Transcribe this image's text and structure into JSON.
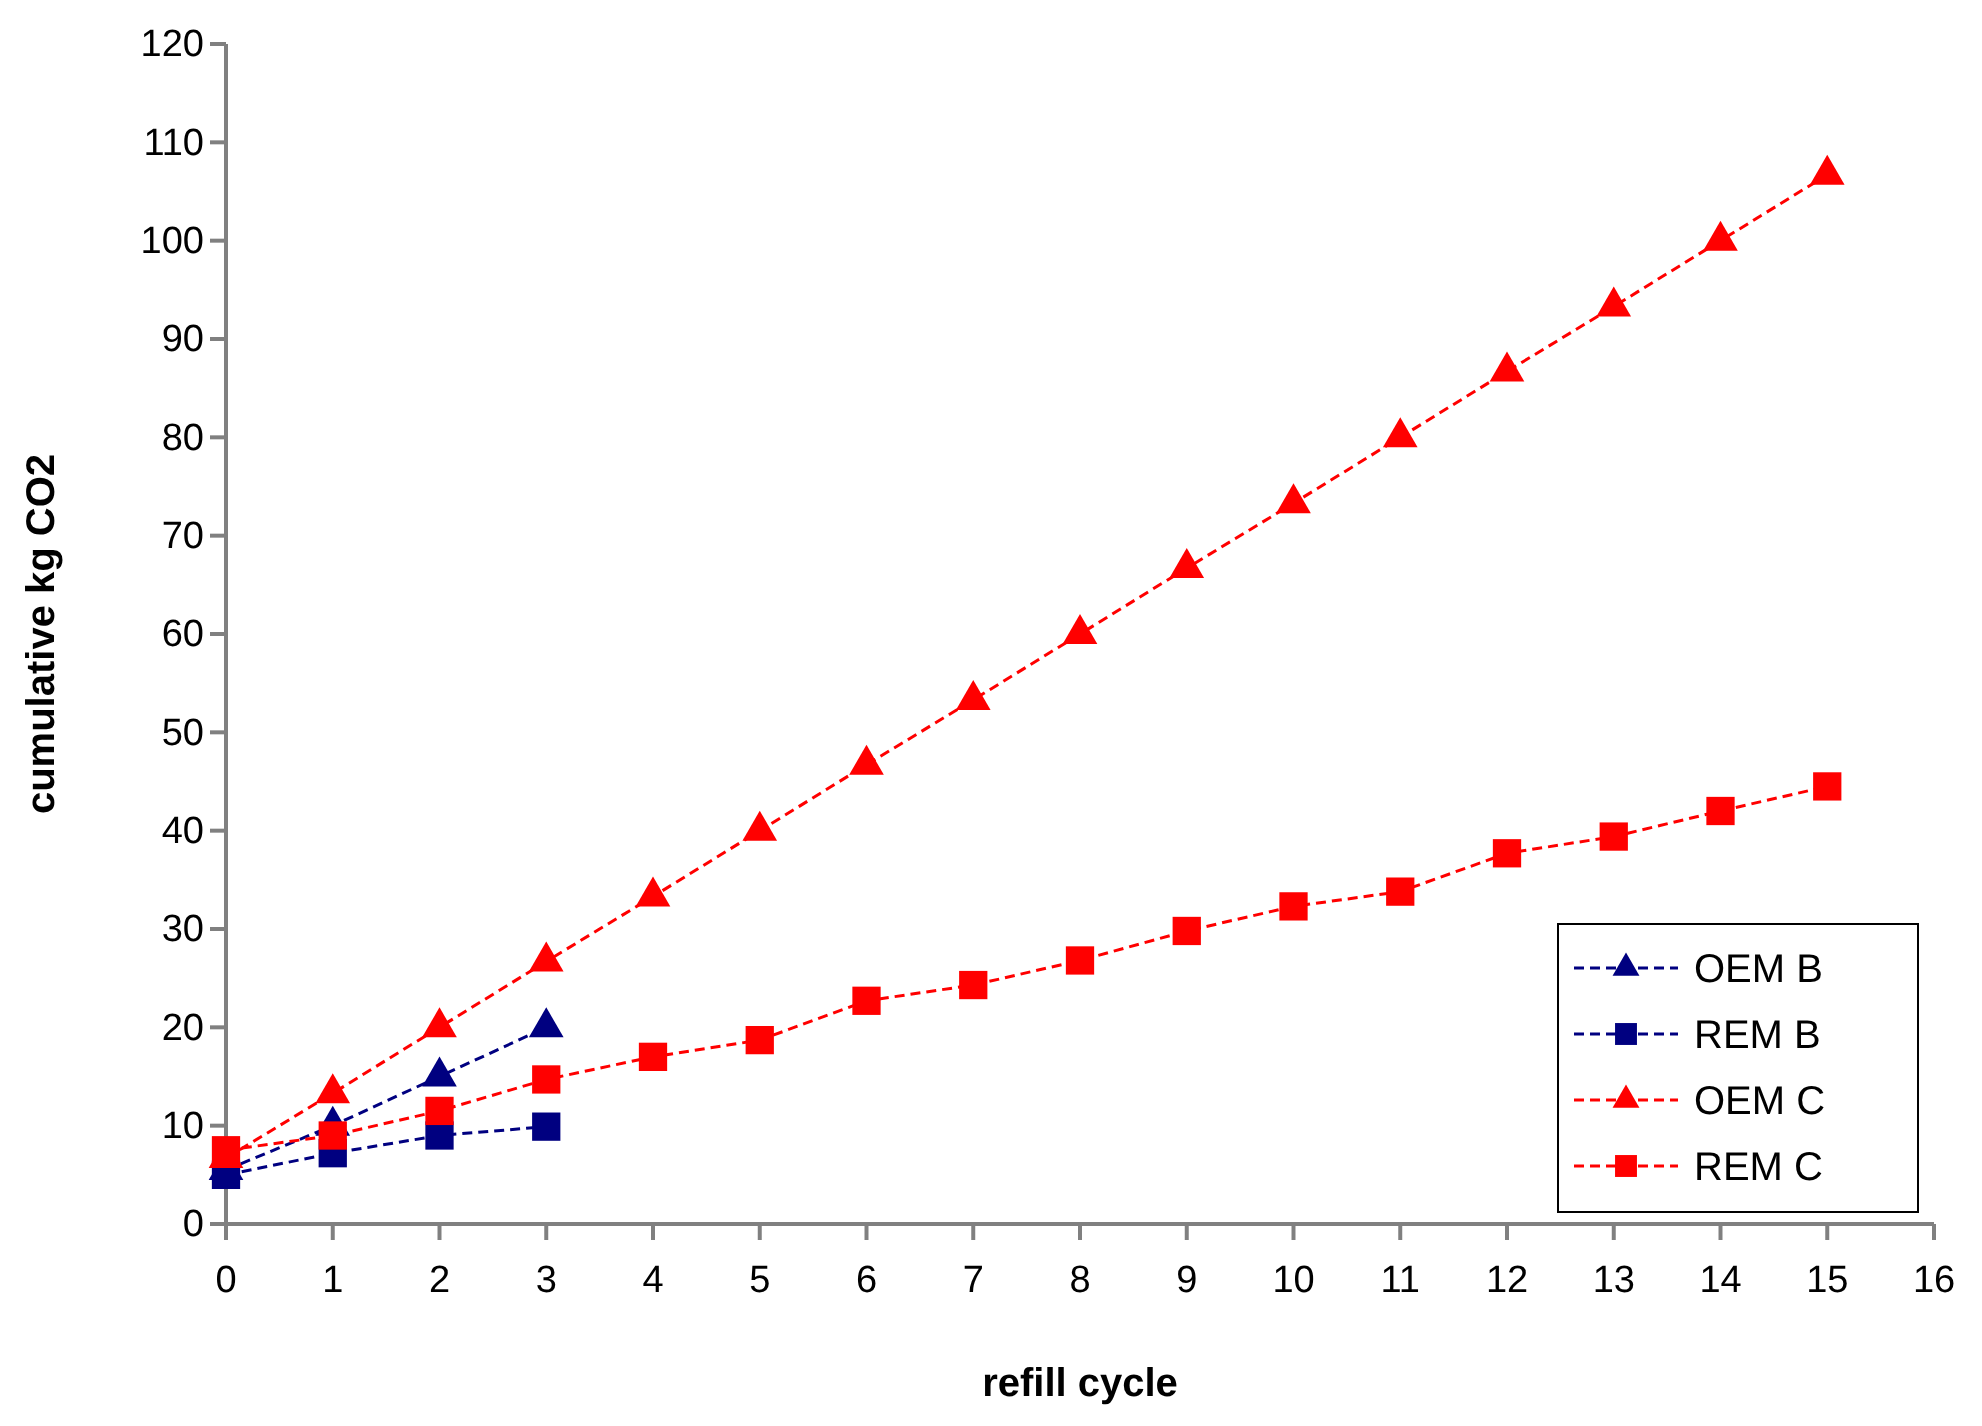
{
  "chart_data": {
    "type": "line",
    "xlabel": "refill cycle",
    "ylabel": "cumulative kg CO2",
    "xlim": [
      0,
      16
    ],
    "xticks": [
      0,
      1,
      2,
      3,
      4,
      5,
      6,
      7,
      8,
      9,
      10,
      11,
      12,
      13,
      14,
      15,
      16
    ],
    "ylim": [
      0,
      120
    ],
    "yticks": [
      0,
      10,
      20,
      30,
      40,
      50,
      60,
      70,
      80,
      90,
      100,
      110,
      120
    ],
    "grid": false,
    "legend": "bottom right",
    "line_style": "dashed",
    "series": [
      {
        "name": "OEM B",
        "color": "#000080",
        "marker": "triangle",
        "x": [
          0,
          1,
          2,
          3
        ],
        "values": [
          5.5,
          10,
          15,
          20
        ]
      },
      {
        "name": "REM B",
        "color": "#000080",
        "marker": "square",
        "x": [
          0,
          1,
          2,
          3
        ],
        "values": [
          5,
          7.2,
          9,
          9.9
        ]
      },
      {
        "name": "OEM C",
        "color": "#ff0000",
        "marker": "triangle",
        "x": [
          0,
          1,
          2,
          3,
          4,
          5,
          6,
          7,
          8,
          9,
          10,
          11,
          12,
          13,
          14,
          15
        ],
        "values": [
          6.7,
          13.3,
          20,
          26.7,
          33.3,
          40,
          46.7,
          53.3,
          60,
          66.7,
          73.3,
          80,
          86.7,
          93.3,
          100,
          106.7
        ]
      },
      {
        "name": "REM C",
        "color": "#ff0000",
        "marker": "square",
        "x": [
          0,
          1,
          2,
          3,
          4,
          5,
          6,
          7,
          8,
          9,
          10,
          11,
          12,
          13,
          14,
          15
        ],
        "values": [
          7.5,
          9,
          11.5,
          14.7,
          17,
          18.7,
          22.7,
          24.3,
          26.8,
          29.8,
          32.3,
          33.8,
          37.7,
          39.4,
          42,
          44.5
        ]
      }
    ]
  }
}
